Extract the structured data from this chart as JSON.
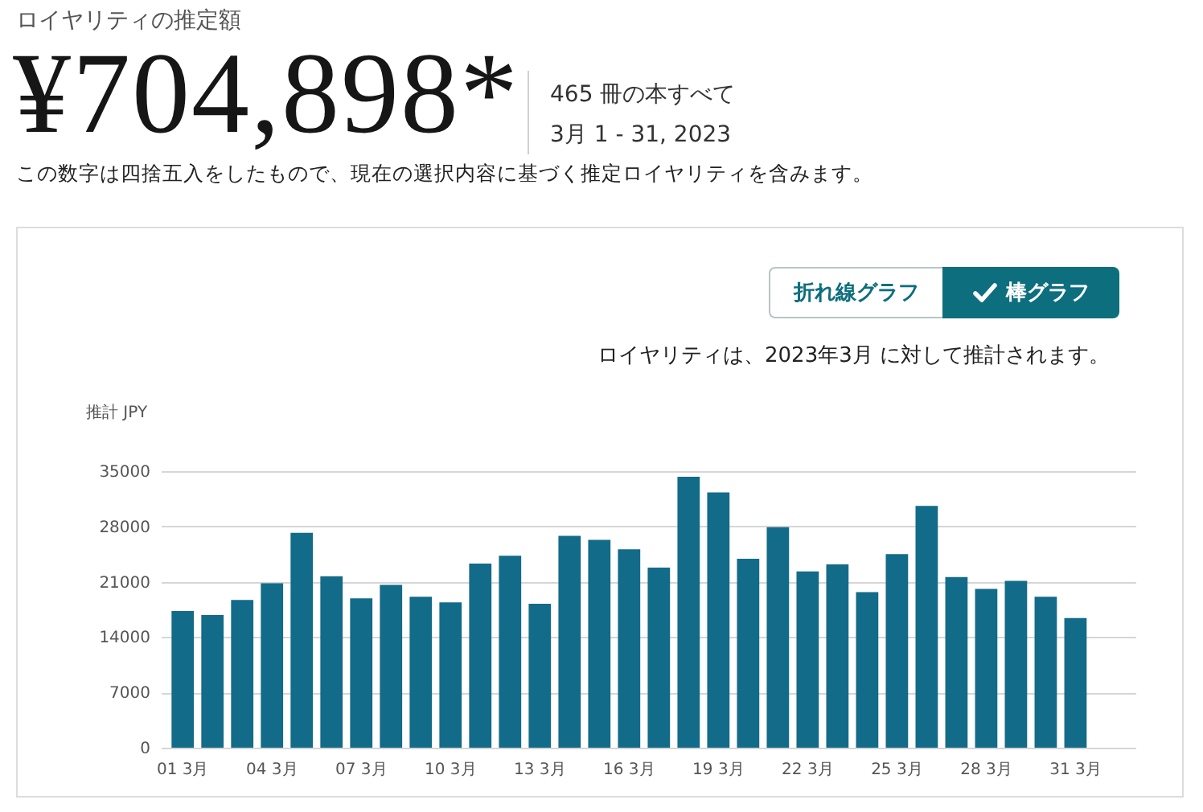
{
  "chart_data": {
    "type": "bar",
    "title": "ロイヤリティの推定額",
    "subtitle": "¥704,898*",
    "annotations": [
      "465 冊の本すべて",
      "3月 1 - 31, 2023",
      "この数字は四捨五入をしたもので、現在の選択内容に基づく推定ロイヤリティを含みます。",
      "折れ線グラフ",
      "棒グラフ",
      "ロイヤリティは、2023年3月 に対して推計されます。"
    ],
    "ylabel": "推計 JPY",
    "categories": [
      "01 3月",
      null,
      null,
      "04 3月",
      null,
      null,
      "07 3月",
      null,
      null,
      "10 3月",
      null,
      null,
      "13 3月",
      null,
      null,
      "16 3月",
      null,
      null,
      "19 3月",
      null,
      null,
      "22 3月",
      null,
      null,
      "25 3月",
      null,
      null,
      "28 3月",
      null,
      null,
      "31 3月"
    ],
    "values": [
      17300,
      16800,
      18700,
      20800,
      27200,
      21700,
      18900,
      20600,
      19100,
      18400,
      23300,
      24300,
      18200,
      26800,
      26300,
      25100,
      22800,
      34300,
      32300,
      23900,
      27900,
      22300,
      23200,
      19700,
      24500,
      30600,
      21600,
      20100,
      21100,
      19100,
      16400
    ],
    "color": "#126b88",
    "ylim": [
      0,
      35000
    ],
    "yticks": [
      0,
      7000,
      14000,
      21000,
      28000,
      35000
    ],
    "grid": "y"
  }
}
